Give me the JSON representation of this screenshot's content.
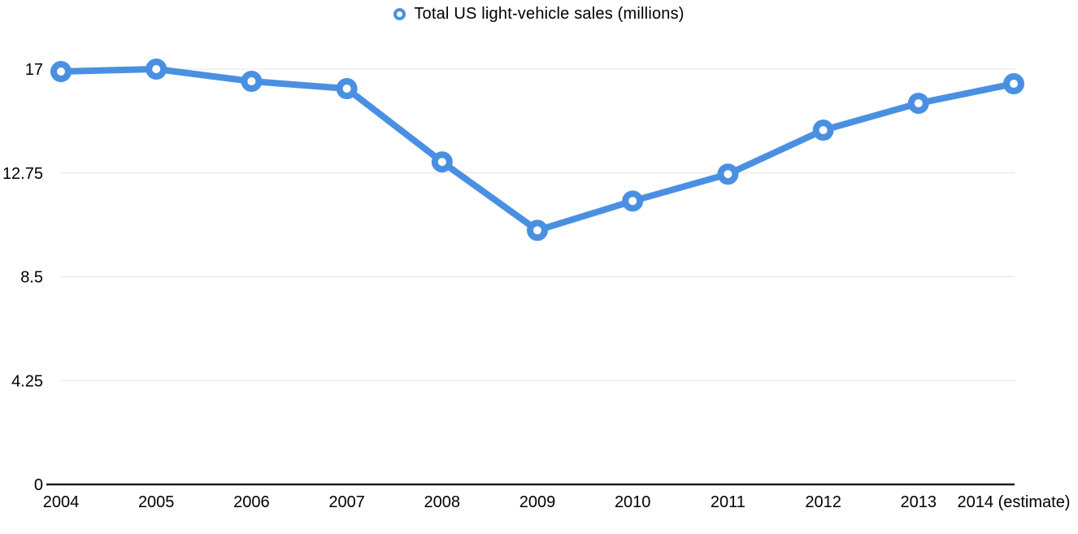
{
  "chart_data": {
    "type": "line",
    "title": "Total US light-vehicle sales (millions)",
    "legend": {
      "label": "Total US light-vehicle sales (millions)",
      "position": "top-center",
      "marker": "ring"
    },
    "x": [
      "2004",
      "2005",
      "2006",
      "2007",
      "2008",
      "2009",
      "2010",
      "2011",
      "2012",
      "2013",
      "2014 (estimate)"
    ],
    "series": [
      {
        "name": "Total US light-vehicle sales (millions)",
        "values": [
          16.9,
          17.0,
          16.5,
          16.2,
          13.2,
          10.4,
          11.6,
          12.7,
          14.5,
          15.6,
          16.4
        ]
      }
    ],
    "xlabel": "",
    "ylabel": "",
    "ylim": [
      0,
      17
    ],
    "yticks": [
      0,
      4.25,
      8.5,
      12.75,
      17
    ],
    "ytick_labels": [
      "0",
      "4.25",
      "8.5",
      "12.75",
      "17"
    ],
    "grid": true,
    "colors": {
      "line": "#4a90e2",
      "marker_ring": "#4a90e2",
      "marker_fill": "#ffffff",
      "grid_line": "#e4e4e4",
      "axis_line": "#1a1a1a",
      "text": "#000000",
      "background": "#ffffff"
    }
  }
}
